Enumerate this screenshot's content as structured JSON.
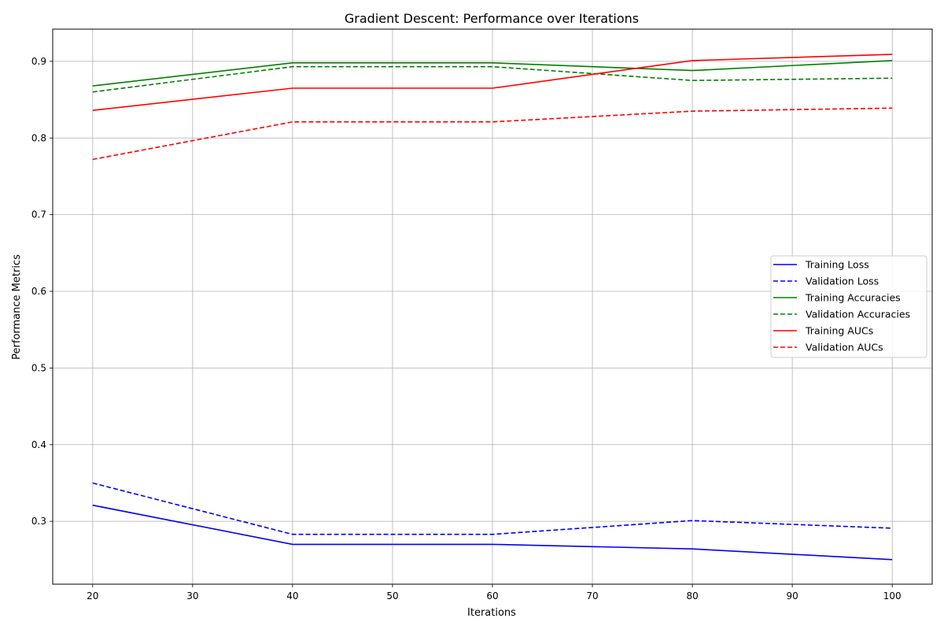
{
  "chart_data": {
    "type": "line",
    "title": "Gradient Descent: Performance over Iterations",
    "xlabel": "Iterations",
    "ylabel": "Performance Metrics",
    "xlim": [
      16,
      104
    ],
    "ylim": [
      0.218,
      0.942
    ],
    "xticks": [
      20,
      30,
      40,
      50,
      60,
      70,
      80,
      90,
      100
    ],
    "yticks": [
      0.3,
      0.4,
      0.5,
      0.6,
      0.7,
      0.8,
      0.9
    ],
    "grid": true,
    "legend_position": "center-right",
    "x": [
      20,
      40,
      60,
      80,
      100
    ],
    "series": [
      {
        "name": "Training Loss",
        "color": "#0000ff",
        "dash": "solid",
        "values": [
          0.321,
          0.27,
          0.27,
          0.264,
          0.25
        ]
      },
      {
        "name": "Validation Loss",
        "color": "#0000ff",
        "dash": "dashed",
        "values": [
          0.35,
          0.283,
          0.283,
          0.301,
          0.291
        ]
      },
      {
        "name": "Training Accuracies",
        "color": "#008000",
        "dash": "solid",
        "values": [
          0.868,
          0.898,
          0.898,
          0.888,
          0.901
        ]
      },
      {
        "name": "Validation Accuracies",
        "color": "#008000",
        "dash": "dashed",
        "values": [
          0.86,
          0.893,
          0.893,
          0.875,
          0.878
        ]
      },
      {
        "name": "Training AUCs",
        "color": "#ff0000",
        "dash": "solid",
        "values": [
          0.836,
          0.865,
          0.865,
          0.901,
          0.909
        ]
      },
      {
        "name": "Validation AUCs",
        "color": "#ff0000",
        "dash": "dashed",
        "values": [
          0.772,
          0.821,
          0.821,
          0.835,
          0.839
        ]
      }
    ]
  }
}
